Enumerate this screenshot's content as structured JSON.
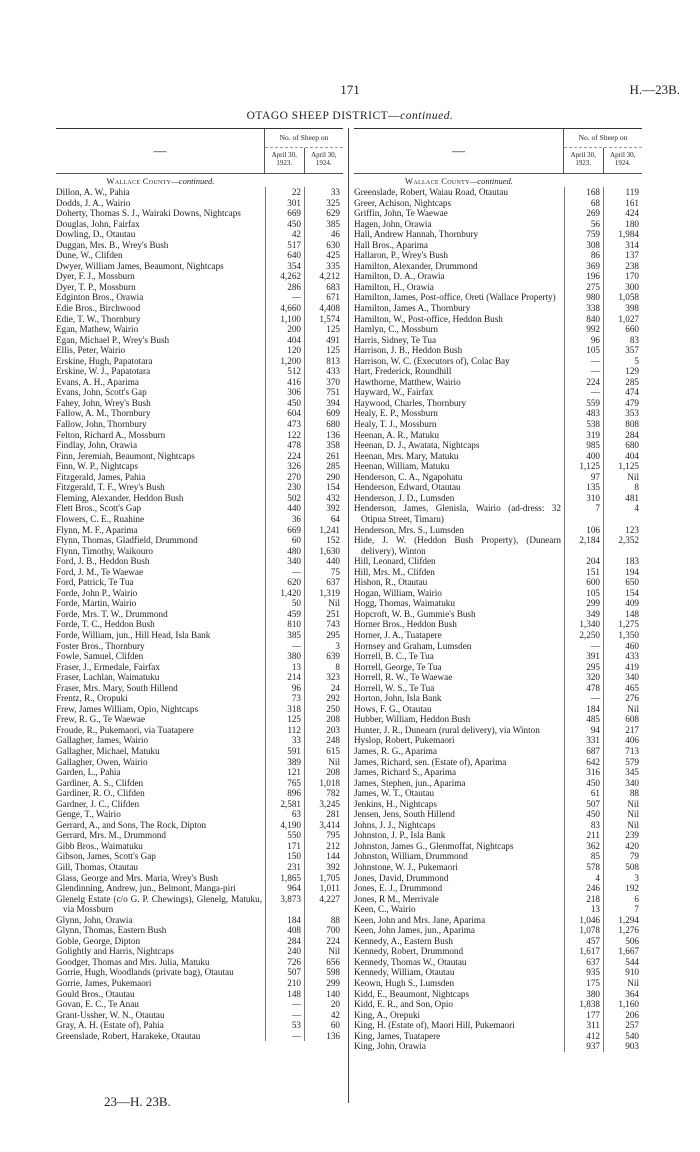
{
  "page_number": "171",
  "document_ref": "H.—23B.",
  "title_main": "OTAGO SHEEP DISTRICT—",
  "title_cont": "continued.",
  "header": {
    "dash": "—",
    "group": "No. of Sheep on",
    "col1": "April 30, 1923.",
    "col2": "April 30, 1924."
  },
  "county_name": "Wallace County",
  "county_cont": "—continued.",
  "footer": "23—H. 23B.",
  "left_rows": [
    [
      "Dillon, A. W., Pahia",
      "22",
      "33"
    ],
    [
      "Dodds, J. A., Wairio",
      "301",
      "325"
    ],
    [
      "Doherty, Thomas S. J., Wairaki Downs, Nightcaps",
      "669",
      "629"
    ],
    [
      "Douglas, John, Fairfax",
      "450",
      "385"
    ],
    [
      "Dowling, D., Otautau",
      "42",
      "46"
    ],
    [
      "Duggan, Mrs. B., Wrey's Bush",
      "517",
      "630"
    ],
    [
      "Dune, W., Clifden",
      "640",
      "425"
    ],
    [
      "Dwyer, William James, Beaumont, Nightcaps",
      "354",
      "335"
    ],
    [
      "Dyer, F. J., Mossburn",
      "4,262",
      "4,212"
    ],
    [
      "Dyer, T. P., Mossburn",
      "286",
      "683"
    ],
    [
      "Edginton Bros., Orawia",
      "—",
      "671"
    ],
    [
      "Edie Bros., Birchwood",
      "4,660",
      "4,408"
    ],
    [
      "Edie, T. W., Thornbury",
      "1,100",
      "1,574"
    ],
    [
      "Egan, Mathew, Wairio",
      "200",
      "125"
    ],
    [
      "Egan, Michael P., Wrey's Bush",
      "404",
      "491"
    ],
    [
      "Ellis, Peter, Wairio",
      "120",
      "125"
    ],
    [
      "Erskine, Hugh, Papatotara",
      "1,200",
      "813"
    ],
    [
      "Erskine, W. J., Papatotara",
      "512",
      "433"
    ],
    [
      "Evans, A. H., Aparima",
      "416",
      "370"
    ],
    [
      "Evans, John, Scott's Gap",
      "306",
      "751"
    ],
    [
      "Fahey, John, Wrey's Bush",
      "450",
      "394"
    ],
    [
      "Fallow, A. M., Thornbury",
      "604",
      "609"
    ],
    [
      "Fallow, John, Thornbury",
      "473",
      "680"
    ],
    [
      "Felton, Richard A., Mossburn",
      "122",
      "136"
    ],
    [
      "Findlay, John, Orawia",
      "478",
      "358"
    ],
    [
      "Finn, Jeremiah, Beaumont, Nightcaps",
      "224",
      "261"
    ],
    [
      "Finn, W. P., Nightcaps",
      "326",
      "285"
    ],
    [
      "Fitzgerald, James, Pahia",
      "270",
      "290"
    ],
    [
      "Fitzgerald, T. F., Wrey's Bush",
      "230",
      "154"
    ],
    [
      "Fleming, Alexander, Heddon Bush",
      "502",
      "432"
    ],
    [
      "Flett Bros., Scott's Gap",
      "440",
      "392"
    ],
    [
      "Flowers, C. E., Ruahine",
      "36",
      "64"
    ],
    [
      "Flynn, M. F., Aparima",
      "669",
      "1,241"
    ],
    [
      "Flynn, Thomas, Gladfield, Drummond",
      "60",
      "152"
    ],
    [
      "Flynn, Timothy, Waikouro",
      "480",
      "1,630"
    ],
    [
      "Ford, J. B., Heddon Bush",
      "340",
      "440"
    ],
    [
      "Ford, J. M., Te Waewae",
      "—",
      "75"
    ],
    [
      "Ford, Patrick, Te Tua",
      "620",
      "637"
    ],
    [
      "Forde, John P., Wairio",
      "1,420",
      "1,319"
    ],
    [
      "Forde, Martin, Wairio",
      "50",
      "Nil"
    ],
    [
      "Forde, Mrs. T. W., Drummond",
      "459",
      "251"
    ],
    [
      "Forde, T. C., Heddon Bush",
      "810",
      "743"
    ],
    [
      "Forde, William, jun., Hill Head, Isla Bank",
      "385",
      "295"
    ],
    [
      "Foster Bros., Thornbury",
      "—",
      "3"
    ],
    [
      "Fowle, Samuel, Clifden",
      "380",
      "639"
    ],
    [
      "Fraser, J., Ermedale, Fairfax",
      "13",
      "8"
    ],
    [
      "Fraser, Lachlan, Waimatuku",
      "214",
      "323"
    ],
    [
      "Fraser, Mrs. Mary, South Hillend",
      "96",
      "24"
    ],
    [
      "Frentz, R., Oropuki",
      "73",
      "292"
    ],
    [
      "Frew, James William, Opio, Nightcaps",
      "318",
      "250"
    ],
    [
      "Frew, R. G., Te Waewae",
      "125",
      "208"
    ],
    [
      "Froude, R., Pukemaori, via Tuatapere",
      "112",
      "203"
    ],
    [
      "Gallagher, James, Wairio",
      "33",
      "248"
    ],
    [
      "Gallagher, Michael, Matuku",
      "591",
      "615"
    ],
    [
      "Gallagher, Owen, Wairio",
      "389",
      "Nil"
    ],
    [
      "Garden, L., Pahia",
      "121",
      "208"
    ],
    [
      "Gardiner, A. S., Clifden",
      "765",
      "1,018"
    ],
    [
      "Gardiner, R. O., Clifden",
      "896",
      "782"
    ],
    [
      "Gardner, J. C., Clifden",
      "2,581",
      "3,245"
    ],
    [
      "Genge, T., Wairio",
      "63",
      "281"
    ],
    [
      "Gerrard, A., and Sons, The Rock, Dipton",
      "4,190",
      "3,414"
    ],
    [
      "Gerrard, Mrs. M., Drummond",
      "550",
      "795"
    ],
    [
      "Gibb Bros., Waimatuku",
      "171",
      "212"
    ],
    [
      "Gibson, James, Scott's Gap",
      "150",
      "144"
    ],
    [
      "Gill, Thomas, Otautau",
      "231",
      "392"
    ],
    [
      "Glass, George and Mrs. Maria, Wrey's Bush",
      "1,865",
      "1,705"
    ],
    [
      "Glendinning, Andrew, jun., Belmont, Manga-piri",
      "964",
      "1,011"
    ],
    [
      "Glenelg Estate (c/o G. P. Chewings), Glenelg, Matuku, via Mossburn",
      "3,873",
      "4,227"
    ],
    [
      "Glynn, John, Orawia",
      "184",
      "88"
    ],
    [
      "Glynn, Thomas, Eastern Bush",
      "408",
      "700"
    ],
    [
      "Goble, George, Dipton",
      "284",
      "224"
    ],
    [
      "Golightly and Harris, Nightcaps",
      "240",
      "Nil"
    ],
    [
      "Goodger, Thomas and Mrs. Julia, Matuku",
      "726",
      "656"
    ],
    [
      "Gorrie, Hugh, Woodlands (private bag), Otautau",
      "507",
      "598"
    ],
    [
      "Gorrie, James, Pukemaori",
      "210",
      "299"
    ],
    [
      "Gould Bros., Otautau",
      "148",
      "140"
    ],
    [
      "Govan, E. C., Te Anau",
      "—",
      "20"
    ],
    [
      "Grant-Ussher, W. N., Otautau",
      "—",
      "42"
    ],
    [
      "Gray, A. H. (Estate of), Pahia",
      "53",
      "60"
    ],
    [
      "Greenslade, Robert, Harakeke, Otautau",
      "—",
      "136"
    ]
  ],
  "right_rows": [
    [
      "Greenslade, Robert, Waiau Road, Otautau",
      "168",
      "119"
    ],
    [
      "Greer, Achison, Nightcaps",
      "68",
      "161"
    ],
    [
      "Griffin, John, Te Waewae",
      "269",
      "424"
    ],
    [
      "Hagen, John, Orawia",
      "56",
      "180"
    ],
    [
      "Hall, Andrew Hannah, Thornbury",
      "759",
      "1,984"
    ],
    [
      "Hall Bros., Aparima",
      "308",
      "314"
    ],
    [
      "Hallaron, P., Wrey's Bush",
      "86",
      "137"
    ],
    [
      "Hamilton, Alexander, Drummond",
      "369",
      "238"
    ],
    [
      "Hamilton, D. A., Orawia",
      "196",
      "170"
    ],
    [
      "Hamilton, H., Orawia",
      "275",
      "300"
    ],
    [
      "Hamilton, James, Post-office, Oreti (Wallace Property)",
      "980",
      "1,058"
    ],
    [
      "Hamilton, James A., Thornbury",
      "338",
      "398"
    ],
    [
      "Hamilton, W., Post-office, Heddon Bush",
      "840",
      "1,027"
    ],
    [
      "Hamlyn, C., Mossburn",
      "992",
      "660"
    ],
    [
      "Harris, Sidney, Te Tua",
      "96",
      "83"
    ],
    [
      "Harrison, J. B., Heddon Bush",
      "105",
      "357"
    ],
    [
      "Harrison, W. C. (Executors of), Colac Bay",
      "—",
      "5"
    ],
    [
      "Hart, Frederick, Roundhill",
      "—",
      "129"
    ],
    [
      "Hawthorne, Matthew, Wairio",
      "224",
      "285"
    ],
    [
      "Hayward, W., Fairfax",
      "—",
      "474"
    ],
    [
      "Haywood, Charles, Thornbury",
      "559",
      "479"
    ],
    [
      "Healy, E. P., Mossburn",
      "483",
      "353"
    ],
    [
      "Healy, T. J., Mossburn",
      "538",
      "808"
    ],
    [
      "Heenan, A. R., Matuku",
      "319",
      "284"
    ],
    [
      "Heenan, D. J., Awatata, Nightcaps",
      "985",
      "680"
    ],
    [
      "Heenan, Mrs. Mary, Matuku",
      "400",
      "404"
    ],
    [
      "Heenan, William, Matuku",
      "1,125",
      "1,125"
    ],
    [
      "Henderson, C. A., Ngapohatu",
      "97",
      "Nil"
    ],
    [
      "Henderson, Edward, Otautau",
      "135",
      "8"
    ],
    [
      "Henderson, J. D., Lumsden",
      "310",
      "481"
    ],
    [
      "Henderson, James, Glenisla, Wairio (ad-dress: 32 Otipua Street, Timaru)",
      "7",
      "4"
    ],
    [
      "Henderson, Mrs. S., Lumsden",
      "106",
      "123"
    ],
    [
      "Hide, J. W. (Heddon Bush Property), (Dunearn delivery), Winton",
      "2,184",
      "2,352"
    ],
    [
      "Hill, Leonard, Clifden",
      "204",
      "183"
    ],
    [
      "Hill, Mrs. M., Clifden",
      "151",
      "194"
    ],
    [
      "Hishon, R., Otautau",
      "600",
      "650"
    ],
    [
      "Hogan, William, Wairio",
      "105",
      "154"
    ],
    [
      "Hogg, Thomas, Waimatuku",
      "299",
      "409"
    ],
    [
      "Hopcroft, W. B., Gummie's Bush",
      "349",
      "148"
    ],
    [
      "Horner Bros., Heddon Bush",
      "1,340",
      "1,275"
    ],
    [
      "Horner, J. A., Tuatapere",
      "2,250",
      "1,350"
    ],
    [
      "Hornsey and Graham, Lumsden",
      "—",
      "460"
    ],
    [
      "Horrell, B. C., Te Tua",
      "391",
      "433"
    ],
    [
      "Horrell, George, Te Tua",
      "295",
      "419"
    ],
    [
      "Horrell, R. W., Te Waewae",
      "320",
      "340"
    ],
    [
      "Horrell, W. S., Te Tua",
      "478",
      "465"
    ],
    [
      "Horton, John, Isla Bank",
      "—",
      "276"
    ],
    [
      "Hows, F. G., Otautau",
      "184",
      "Nil"
    ],
    [
      "Hubber, William, Heddon Bush",
      "485",
      "608"
    ],
    [
      "Hunter, J. R., Dunearn (rural delivery), via Winton",
      "94",
      "217"
    ],
    [
      "Hyslop, Robert, Pukemaori",
      "331",
      "406"
    ],
    [
      "James, R. G., Aparima",
      "687",
      "713"
    ],
    [
      "James, Richard, sen. (Estate of), Aparima",
      "642",
      "579"
    ],
    [
      "James, Richard S., Aparima",
      "316",
      "345"
    ],
    [
      "James, Stephen, jun., Aparima",
      "450",
      "340"
    ],
    [
      "James, W. T., Otautau",
      "61",
      "88"
    ],
    [
      "Jenkins, H., Nightcaps",
      "507",
      "Nil"
    ],
    [
      "Jensen, Jens, South Hillend",
      "450",
      "Nil"
    ],
    [
      "Johns, J. J., Nightcaps",
      "83",
      "Nil"
    ],
    [
      "Johnston, J. P., Isla Bank",
      "211",
      "239"
    ],
    [
      "Johnston, James G., Glenmoffat, Nightcaps",
      "362",
      "420"
    ],
    [
      "Johnston, William, Drummond",
      "85",
      "79"
    ],
    [
      "Johnstone, W. J., Pukemaori",
      "578",
      "508"
    ],
    [
      "Jones, David, Drummond",
      "4",
      "3"
    ],
    [
      "Jones, E. J., Drummond",
      "246",
      "192"
    ],
    [
      "Jones, R M., Merrivale",
      "218",
      "6"
    ],
    [
      "Keen, C., Wairio",
      "13",
      "7"
    ],
    [
      "Keen, John and Mrs. Jane, Aparima",
      "1,046",
      "1,294"
    ],
    [
      "Keen, John James, jun., Aparima",
      "1,078",
      "1,276"
    ],
    [
      "Kennedy, A., Eastern Bush",
      "457",
      "506"
    ],
    [
      "Kennedy, Robert, Drummond",
      "1,617",
      "1,667"
    ],
    [
      "Kennedy, Thomas W., Otautau",
      "637",
      "544"
    ],
    [
      "Kennedy, William, Otautau",
      "935",
      "910"
    ],
    [
      "Keown, Hugh S., Lumsden",
      "175",
      "Nil"
    ],
    [
      "Kidd, E., Beaumont, Nightcaps",
      "380",
      "364"
    ],
    [
      "Kidd, E. R., and Son, Opio",
      "1,838",
      "1,160"
    ],
    [
      "King, A., Orepuki",
      "177",
      "206"
    ],
    [
      "King, H. (Estate of), Maori Hill, Pukemaori",
      "311",
      "257"
    ],
    [
      "King, James, Tuatapere",
      "412",
      "540"
    ],
    [
      "King, John, Orawia",
      "937",
      "903"
    ]
  ]
}
